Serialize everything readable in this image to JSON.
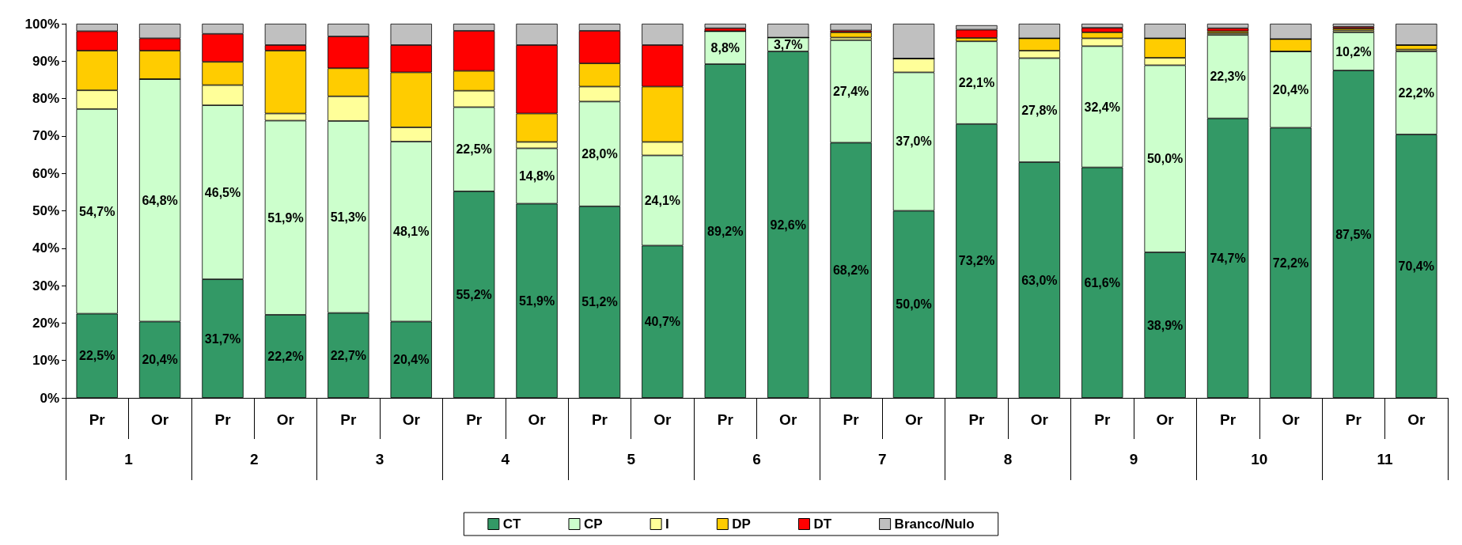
{
  "chart_data": {
    "type": "bar",
    "stacked": true,
    "categories": [
      "Pr",
      "Or",
      "Pr",
      "Or",
      "Pr",
      "Or",
      "Pr",
      "Or",
      "Pr",
      "Or",
      "Pr",
      "Or",
      "Pr",
      "Or",
      "Pr",
      "Or",
      "Pr",
      "Or",
      "Pr",
      "Or",
      "Pr",
      "Or"
    ],
    "annotations": [
      "1",
      "2",
      "3",
      "4",
      "5",
      "6",
      "7",
      "8",
      "9",
      "10",
      "11"
    ],
    "series": [
      {
        "name": "CT",
        "color": "#339966",
        "values": [
          22.5,
          20.4,
          31.7,
          22.2,
          22.7,
          20.4,
          55.2,
          51.9,
          51.2,
          40.7,
          89.2,
          92.6,
          68.2,
          50.0,
          73.2,
          63.0,
          61.6,
          38.9,
          74.7,
          72.2,
          87.5,
          70.4
        ],
        "value_labels": [
          "22,5%",
          "20,4%",
          "31,7%",
          "22,2%",
          "22,7%",
          "20,4%",
          "55,2%",
          "51,9%",
          "51,2%",
          "40,7%",
          "89,2%",
          "92,6%",
          "68,2%",
          "50,0%",
          "73,2%",
          "63,0%",
          "61,6%",
          "38,9%",
          "74,7%",
          "72,2%",
          "87,5%",
          "70,4%"
        ]
      },
      {
        "name": "CP",
        "color": "#ccffcc",
        "values": [
          54.7,
          64.8,
          46.5,
          51.9,
          51.3,
          48.1,
          22.5,
          14.8,
          28.0,
          24.1,
          8.8,
          3.7,
          27.4,
          37.0,
          22.1,
          27.8,
          32.4,
          50.0,
          22.3,
          20.4,
          10.2,
          22.2
        ],
        "value_labels": [
          "54,7%",
          "64,8%",
          "46,5%",
          "51,9%",
          "51,3%",
          "48,1%",
          "22,5%",
          "14,8%",
          "28,0%",
          "24,1%",
          "8,8%",
          "3,7%",
          "27,4%",
          "37,0%",
          "22,1%",
          "27,8%",
          "32,4%",
          "50,0%",
          "22,3%",
          "20,4%",
          "10,2%",
          "22,2%"
        ]
      },
      {
        "name": "I",
        "color": "#ffff99",
        "values": [
          5.0,
          0,
          5.4,
          1.9,
          6.6,
          3.8,
          4.4,
          1.7,
          4.0,
          3.6,
          0,
          0,
          0.7,
          3.7,
          null,
          2.0,
          2.1,
          2.0,
          0.5,
          0,
          0.5,
          0.5
        ]
      },
      {
        "name": "DP",
        "color": "#ffcc00",
        "values": [
          10.6,
          7.6,
          6.2,
          16.8,
          7.5,
          14.7,
          5.3,
          7.6,
          6.2,
          14.8,
          0,
          0,
          1.4,
          0,
          0.9,
          3.3,
          1.6,
          5.2,
          0.5,
          3.3,
          0.5,
          1.2
        ]
      },
      {
        "name": "DT",
        "color": "#ff0000",
        "values": [
          5.2,
          3.3,
          7.5,
          1.5,
          8.5,
          7.3,
          10.7,
          18.3,
          8.7,
          11.1,
          0.8,
          0,
          0.5,
          0,
          2.2,
          0,
          1.2,
          0,
          0.8,
          0,
          0.5,
          0
        ]
      },
      {
        "name": "Branco/Nulo",
        "color": "#c0c0c0",
        "values": [
          2.0,
          3.9,
          2.7,
          5.7,
          3.4,
          5.7,
          1.9,
          5.7,
          1.9,
          5.7,
          1.2,
          3.7,
          1.8,
          9.3,
          1.2,
          3.9,
          1.1,
          3.9,
          1.2,
          4.1,
          0.8,
          5.7
        ]
      }
    ],
    "ylim": [
      0,
      100
    ],
    "yticks": [
      {
        "value": 0,
        "label": "0%"
      },
      {
        "value": 10,
        "label": "10%"
      },
      {
        "value": 20,
        "label": "20%"
      },
      {
        "value": 30,
        "label": "30%"
      },
      {
        "value": 40,
        "label": "40%"
      },
      {
        "value": 50,
        "label": "50%"
      },
      {
        "value": 60,
        "label": "60%"
      },
      {
        "value": 70,
        "label": "70%"
      },
      {
        "value": 80,
        "label": "80%"
      },
      {
        "value": 90,
        "label": "90%"
      },
      {
        "value": 100,
        "label": "100%"
      }
    ],
    "grid": false,
    "legend": "bottom"
  }
}
